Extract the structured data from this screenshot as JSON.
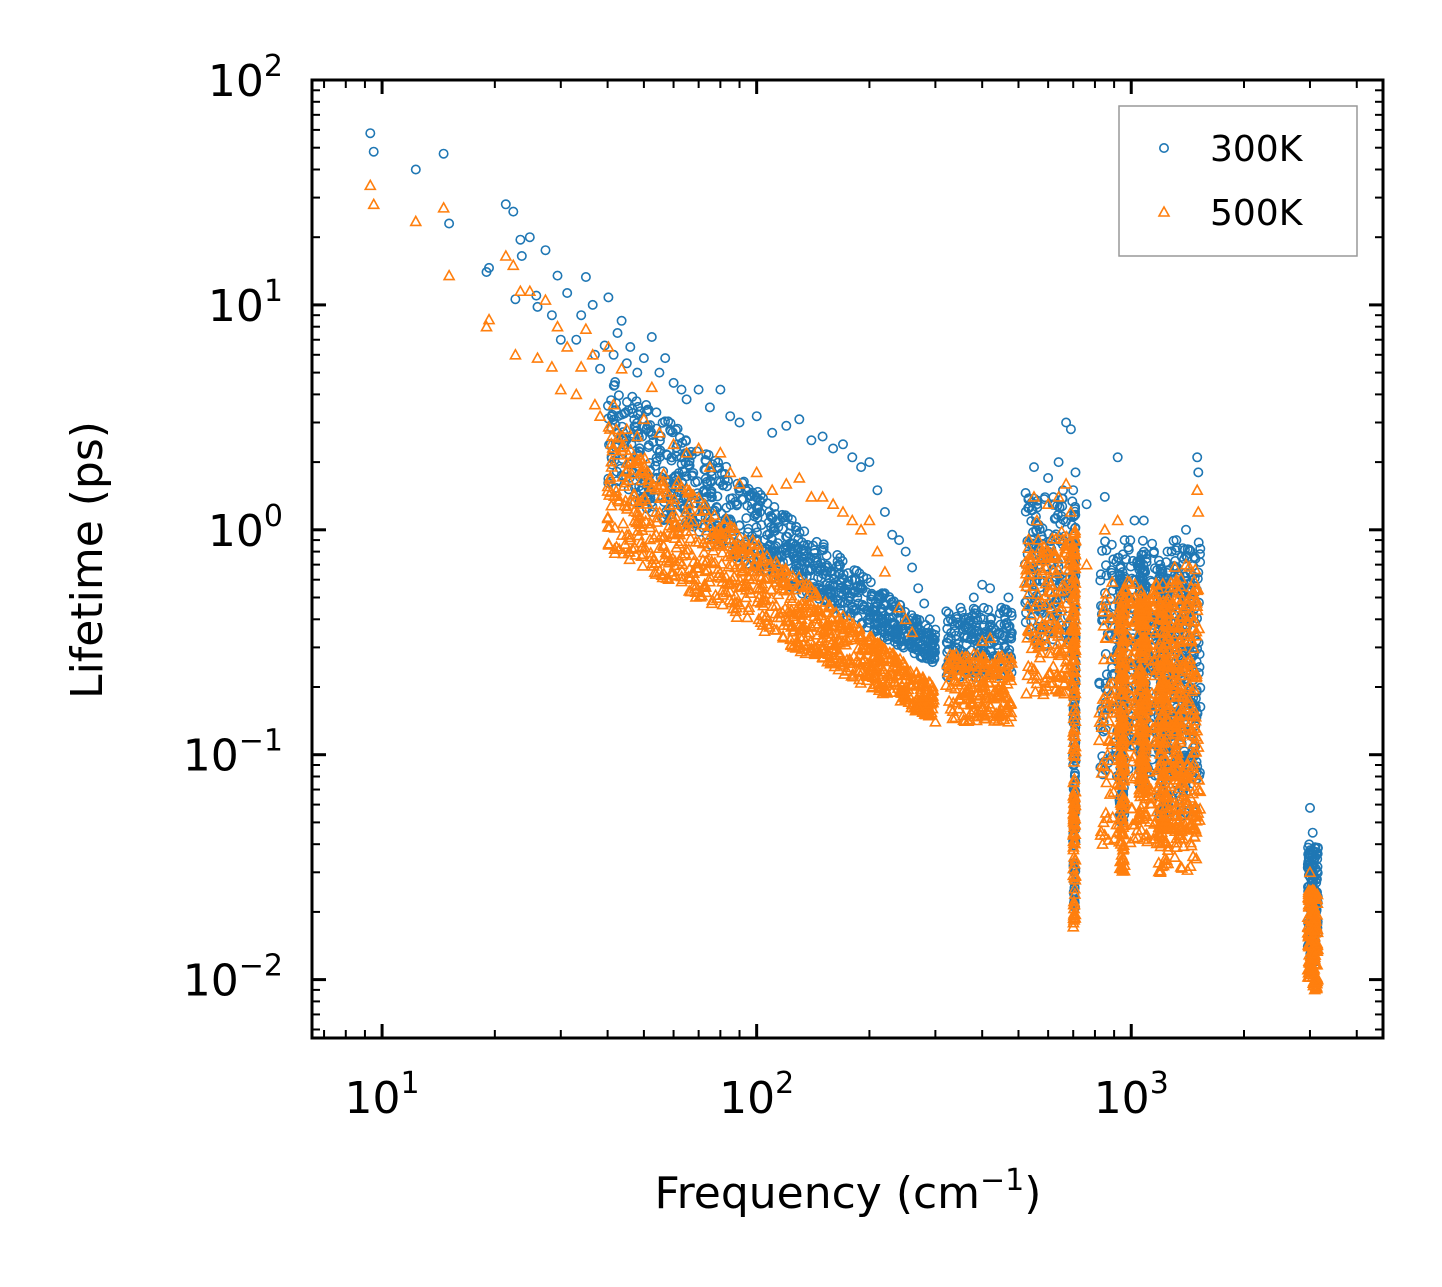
{
  "chart_data": {
    "type": "scatter",
    "xscale": "log",
    "yscale": "log",
    "xlim": [
      6.5,
      4700
    ],
    "ylim": [
      0.0055,
      100
    ],
    "xlabel": "Frequency (cm",
    "xlabel_exp": "−1",
    "xlabel_close": ")",
    "ylabel": "Lifetime (ps)",
    "x_ticks": [
      {
        "value": 10,
        "base": "10",
        "exp": "1"
      },
      {
        "value": 100,
        "base": "10",
        "exp": "2"
      },
      {
        "value": 1000,
        "base": "10",
        "exp": "3"
      }
    ],
    "y_ticks": [
      {
        "value": 100,
        "base": "10",
        "exp": "2"
      },
      {
        "value": 10,
        "base": "10",
        "exp": "1"
      },
      {
        "value": 1,
        "base": "10",
        "exp": "0"
      },
      {
        "value": 0.1,
        "base": "10",
        "exp": "−1"
      },
      {
        "value": 0.01,
        "base": "10",
        "exp": "−2"
      }
    ],
    "legend_position": "top-right",
    "series": [
      {
        "name": "300K",
        "marker": "circle",
        "color": "#1f77b4",
        "points": [
          [
            9.3,
            58
          ],
          [
            9.5,
            48
          ],
          [
            12.3,
            40
          ],
          [
            14.6,
            47
          ],
          [
            15.1,
            23
          ],
          [
            19,
            14
          ],
          [
            19.3,
            14.6
          ],
          [
            21.4,
            28
          ],
          [
            22.4,
            26
          ],
          [
            23.4,
            19.5
          ],
          [
            23.6,
            16.5
          ],
          [
            22.7,
            10.6
          ],
          [
            24.8,
            20
          ],
          [
            25.8,
            11
          ],
          [
            26,
            9.8
          ],
          [
            27.3,
            17.5
          ],
          [
            28.4,
            9
          ],
          [
            29.4,
            13.5
          ],
          [
            30,
            7
          ],
          [
            31.2,
            11.3
          ],
          [
            33,
            7
          ],
          [
            34,
            9
          ],
          [
            35,
            13.3
          ],
          [
            36.5,
            10
          ],
          [
            37,
            6
          ],
          [
            38.2,
            5.2
          ],
          [
            39.3,
            6.6
          ],
          [
            40.2,
            10.8
          ],
          [
            41.5,
            6
          ],
          [
            42.5,
            7.5
          ],
          [
            43.6,
            8.5
          ],
          [
            45,
            5.5
          ],
          [
            46,
            6.5
          ],
          [
            48,
            5
          ],
          [
            50,
            5.8
          ],
          [
            52.5,
            7.2
          ],
          [
            55,
            5
          ],
          [
            57,
            5.8
          ],
          [
            60,
            4.5
          ],
          [
            63,
            4.2
          ],
          [
            65,
            3.8
          ],
          [
            70,
            4.2
          ],
          [
            75,
            3.5
          ],
          [
            80,
            4.2
          ],
          [
            85,
            3.2
          ],
          [
            90,
            3
          ],
          [
            100,
            3.2
          ],
          [
            110,
            2.7
          ],
          [
            120,
            2.9
          ],
          [
            130,
            3.1
          ],
          [
            140,
            2.5
          ],
          [
            150,
            2.6
          ],
          [
            160,
            2.3
          ],
          [
            170,
            2.4
          ],
          [
            180,
            2.1
          ],
          [
            190,
            1.9
          ],
          [
            200,
            2
          ],
          [
            210,
            1.5
          ],
          [
            220,
            1.2
          ],
          [
            230,
            0.95
          ],
          [
            240,
            0.9
          ],
          [
            250,
            0.8
          ],
          [
            260,
            0.68
          ],
          [
            270,
            0.55
          ],
          [
            280,
            0.47
          ],
          [
            290,
            0.4
          ],
          [
            300,
            0.36
          ],
          [
            330,
            0.4
          ],
          [
            350,
            0.45
          ],
          [
            380,
            0.5
          ],
          [
            400,
            0.57
          ],
          [
            420,
            0.55
          ],
          [
            450,
            0.45
          ],
          [
            470,
            0.5
          ],
          [
            550,
            1.9
          ],
          [
            560,
            1.3
          ],
          [
            600,
            1.7
          ],
          [
            640,
            2
          ],
          [
            670,
            3
          ],
          [
            690,
            2.8
          ],
          [
            700,
            1.5
          ],
          [
            710,
            1.8
          ],
          [
            760,
            1.3
          ],
          [
            850,
            1.4
          ],
          [
            920,
            2.1
          ],
          [
            960,
            0.9
          ],
          [
            1020,
            1.1
          ],
          [
            1080,
            1.1
          ],
          [
            1150,
            0.8
          ],
          [
            1250,
            0.8
          ],
          [
            1320,
            0.9
          ],
          [
            1400,
            1
          ],
          [
            1500,
            2.1
          ],
          [
            1510,
            1.8
          ],
          [
            3000,
            0.058
          ],
          [
            3050,
            0.045
          ],
          [
            3100,
            0.035
          ]
        ],
        "bands": [
          {
            "x": [
              700,
              710
            ],
            "y": [
              0.02,
              1.3
            ]
          },
          {
            "x": [
              930,
              960
            ],
            "y": [
              0.05,
              0.7
            ]
          },
          {
            "x": [
              1050,
              1100
            ],
            "y": [
              0.07,
              0.8
            ]
          },
          {
            "x": [
              1180,
              1260
            ],
            "y": [
              0.05,
              0.7
            ]
          },
          {
            "x": [
              1300,
              1500
            ],
            "y": [
              0.05,
              0.85
            ]
          },
          {
            "x": [
              2960,
              3150
            ],
            "y": [
              0.012,
              0.04
            ]
          }
        ]
      },
      {
        "name": "500K",
        "marker": "triangle",
        "color": "#ff7f0e",
        "points": [
          [
            9.3,
            34
          ],
          [
            9.5,
            28
          ],
          [
            12.3,
            23.5
          ],
          [
            14.6,
            27
          ],
          [
            15.1,
            13.5
          ],
          [
            19,
            8
          ],
          [
            19.3,
            8.6
          ],
          [
            21.4,
            16.5
          ],
          [
            22.4,
            15
          ],
          [
            22.7,
            6
          ],
          [
            23.4,
            11.5
          ],
          [
            24.8,
            11.5
          ],
          [
            26,
            5.8
          ],
          [
            27.3,
            10.5
          ],
          [
            28.4,
            5.3
          ],
          [
            29.4,
            8
          ],
          [
            30,
            4.2
          ],
          [
            31.2,
            6.5
          ],
          [
            33,
            4
          ],
          [
            34,
            5.3
          ],
          [
            35,
            7.8
          ],
          [
            36.5,
            6
          ],
          [
            37,
            3.6
          ],
          [
            38.2,
            3.2
          ],
          [
            40.2,
            6.5
          ],
          [
            41.5,
            3.6
          ],
          [
            43.6,
            5.2
          ],
          [
            45,
            2.8
          ],
          [
            48,
            2.6
          ],
          [
            50,
            3.1
          ],
          [
            52.5,
            4.3
          ],
          [
            55,
            2.7
          ],
          [
            60,
            2.4
          ],
          [
            65,
            2.2
          ],
          [
            70,
            2.3
          ],
          [
            75,
            1.9
          ],
          [
            80,
            2.2
          ],
          [
            85,
            1.8
          ],
          [
            90,
            1.6
          ],
          [
            100,
            1.8
          ],
          [
            110,
            1.5
          ],
          [
            120,
            1.6
          ],
          [
            130,
            1.7
          ],
          [
            140,
            1.4
          ],
          [
            150,
            1.4
          ],
          [
            160,
            1.3
          ],
          [
            170,
            1.2
          ],
          [
            180,
            1.1
          ],
          [
            190,
            1
          ],
          [
            200,
            1.1
          ],
          [
            210,
            0.8
          ],
          [
            220,
            0.65
          ],
          [
            230,
            0.28
          ],
          [
            240,
            0.45
          ],
          [
            250,
            0.4
          ],
          [
            260,
            0.35
          ],
          [
            270,
            0.22
          ],
          [
            280,
            0.2
          ],
          [
            290,
            0.15
          ],
          [
            300,
            0.14
          ],
          [
            330,
            0.2
          ],
          [
            350,
            0.25
          ],
          [
            380,
            0.28
          ],
          [
            400,
            0.32
          ],
          [
            420,
            0.33
          ],
          [
            450,
            0.25
          ],
          [
            470,
            0.14
          ],
          [
            550,
            1.4
          ],
          [
            560,
            1.1
          ],
          [
            600,
            1.3
          ],
          [
            640,
            1.4
          ],
          [
            670,
            1.6
          ],
          [
            690,
            1.2
          ],
          [
            700,
            0.7
          ],
          [
            710,
            0.9
          ],
          [
            760,
            0.7
          ],
          [
            850,
            1
          ],
          [
            920,
            1.1
          ],
          [
            960,
            0.5
          ],
          [
            1020,
            0.5
          ],
          [
            1080,
            0.5
          ],
          [
            1150,
            0.5
          ],
          [
            1250,
            0.4
          ],
          [
            1320,
            0.6
          ],
          [
            1400,
            0.7
          ],
          [
            1500,
            1.5
          ],
          [
            1510,
            1.2
          ],
          [
            3000,
            0.03
          ],
          [
            3050,
            0.025
          ],
          [
            3100,
            0.02
          ]
        ],
        "bands": [
          {
            "x": [
              700,
              710
            ],
            "y": [
              0.017,
              1.0
            ]
          },
          {
            "x": [
              930,
              960
            ],
            "y": [
              0.03,
              0.5
            ]
          },
          {
            "x": [
              1050,
              1100
            ],
            "y": [
              0.05,
              0.5
            ]
          },
          {
            "x": [
              1180,
              1260
            ],
            "y": [
              0.03,
              0.5
            ]
          },
          {
            "x": [
              1300,
              1500
            ],
            "y": [
              0.03,
              0.7
            ]
          },
          {
            "x": [
              2960,
              3150
            ],
            "y": [
              0.009,
              0.025
            ]
          }
        ]
      }
    ],
    "clouds": [
      {
        "series": 0,
        "x": [
          40,
          300
        ],
        "y_start": [
          5.0,
          0.35
        ],
        "y_end": [
          1.5,
          0.25
        ],
        "count": 900
      },
      {
        "series": 0,
        "x": [
          320,
          480
        ],
        "y_start": [
          0.45,
          0.45
        ],
        "y_end": [
          0.22,
          0.22
        ],
        "count": 200
      },
      {
        "series": 0,
        "x": [
          520,
          700
        ],
        "y_start": [
          1.5,
          1.5
        ],
        "y_end": [
          0.3,
          0.3
        ],
        "count": 180
      },
      {
        "series": 0,
        "x": [
          820,
          1530
        ],
        "y_start": [
          0.9,
          0.9
        ],
        "y_end": [
          0.08,
          0.08
        ],
        "count": 400
      },
      {
        "series": 1,
        "x": [
          40,
          300
        ],
        "y_start": [
          3.0,
          0.2
        ],
        "y_end": [
          0.8,
          0.14
        ],
        "count": 900
      },
      {
        "series": 1,
        "x": [
          320,
          480
        ],
        "y_start": [
          0.28,
          0.28
        ],
        "y_end": [
          0.14,
          0.14
        ],
        "count": 200
      },
      {
        "series": 1,
        "x": [
          520,
          700
        ],
        "y_start": [
          1.0,
          1.0
        ],
        "y_end": [
          0.18,
          0.18
        ],
        "count": 180
      },
      {
        "series": 1,
        "x": [
          820,
          1530
        ],
        "y_start": [
          0.6,
          0.6
        ],
        "y_end": [
          0.04,
          0.04
        ],
        "count": 400
      }
    ]
  }
}
